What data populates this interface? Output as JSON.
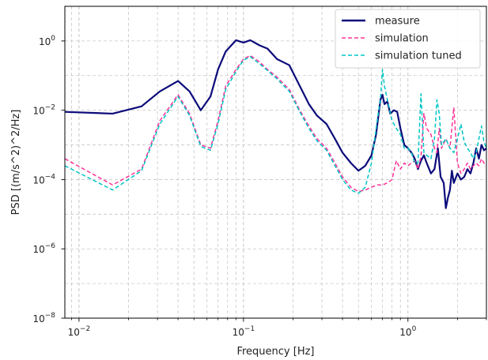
{
  "chart_data": {
    "type": "line",
    "xlabel": "Frequency [Hz]",
    "ylabel": "PSD [(m/s^2)^2/Hz]",
    "x_scale": "log",
    "y_scale": "log",
    "xlim": [
      0.0082,
      3.0
    ],
    "ylim": [
      1e-08,
      10
    ],
    "grid": true,
    "grid_style": "dashed",
    "legend_position": "top-right",
    "x_ticks": [
      {
        "value": 0.01,
        "base": "10",
        "exp": "−2"
      },
      {
        "value": 0.1,
        "base": "10",
        "exp": "−1"
      },
      {
        "value": 1,
        "base": "10",
        "exp": "0"
      }
    ],
    "y_ticks": [
      {
        "value": 1e-08,
        "base": "10",
        "exp": "−8"
      },
      {
        "value": 1e-06,
        "base": "10",
        "exp": "−6"
      },
      {
        "value": 0.0001,
        "base": "10",
        "exp": "−4"
      },
      {
        "value": 0.01,
        "base": "10",
        "exp": "−2"
      },
      {
        "value": 1,
        "base": "10",
        "exp": "0"
      }
    ],
    "series": [
      {
        "name": "measure",
        "color": "#0b0b7a",
        "style": "solid",
        "x": [
          0.0082,
          0.016,
          0.024,
          0.031,
          0.04,
          0.047,
          0.055,
          0.063,
          0.07,
          0.078,
          0.09,
          0.1,
          0.11,
          0.125,
          0.14,
          0.16,
          0.19,
          0.22,
          0.25,
          0.28,
          0.32,
          0.36,
          0.4,
          0.45,
          0.5,
          0.55,
          0.6,
          0.64,
          0.68,
          0.7,
          0.72,
          0.75,
          0.78,
          0.82,
          0.86,
          0.9,
          0.95,
          1.0,
          1.05,
          1.1,
          1.15,
          1.2,
          1.25,
          1.3,
          1.38,
          1.45,
          1.52,
          1.58,
          1.65,
          1.7,
          1.75,
          1.8,
          1.85,
          1.9,
          2.0,
          2.1,
          2.2,
          2.3,
          2.4,
          2.5,
          2.6,
          2.7,
          2.8,
          2.9,
          3.0
        ],
        "y": [
          0.009,
          0.008,
          0.013,
          0.035,
          0.07,
          0.035,
          0.01,
          0.025,
          0.15,
          0.5,
          1.05,
          0.9,
          1.05,
          0.75,
          0.6,
          0.3,
          0.2,
          0.05,
          0.015,
          0.007,
          0.004,
          0.0015,
          0.0006,
          0.0003,
          0.00018,
          0.00025,
          0.0005,
          0.002,
          0.02,
          0.028,
          0.015,
          0.018,
          0.008,
          0.01,
          0.009,
          0.003,
          0.001,
          0.0008,
          0.0006,
          0.0004,
          0.0002,
          0.00035,
          0.0005,
          0.0003,
          0.00015,
          0.0002,
          0.0008,
          0.00012,
          8e-05,
          1.5e-05,
          3e-05,
          5e-05,
          0.00018,
          8e-05,
          0.00015,
          0.0001,
          0.00012,
          0.0002,
          0.00015,
          0.0003,
          0.0008,
          0.0004,
          0.001,
          0.0007,
          0.0008
        ]
      },
      {
        "name": "simulation",
        "color": "#ff3399",
        "style": "dashed",
        "x": [
          0.0082,
          0.016,
          0.024,
          0.031,
          0.04,
          0.047,
          0.055,
          0.063,
          0.07,
          0.078,
          0.09,
          0.1,
          0.11,
          0.125,
          0.14,
          0.16,
          0.19,
          0.22,
          0.25,
          0.28,
          0.32,
          0.36,
          0.4,
          0.45,
          0.5,
          0.55,
          0.6,
          0.65,
          0.7,
          0.75,
          0.8,
          0.85,
          0.9,
          0.95,
          1.0,
          1.05,
          1.1,
          1.15,
          1.2,
          1.25,
          1.3,
          1.38,
          1.45,
          1.5,
          1.55,
          1.6,
          1.7,
          1.8,
          1.9,
          2.0,
          2.1,
          2.2,
          2.3,
          2.4,
          2.5,
          2.6,
          2.7,
          2.8,
          2.9,
          3.0
        ],
        "y": [
          0.0004,
          7e-05,
          0.0002,
          0.005,
          0.028,
          0.008,
          0.001,
          0.0008,
          0.005,
          0.05,
          0.15,
          0.3,
          0.38,
          0.25,
          0.15,
          0.09,
          0.04,
          0.01,
          0.0035,
          0.0015,
          0.0008,
          0.0003,
          0.00012,
          6e-05,
          4.5e-05,
          5e-05,
          6e-05,
          7e-05,
          7e-05,
          8e-05,
          0.0001,
          0.00035,
          0.0002,
          0.0003,
          0.00025,
          0.0003,
          0.00035,
          0.0002,
          0.00045,
          0.008,
          0.003,
          0.002,
          0.0008,
          0.0006,
          0.003,
          0.0008,
          0.0015,
          0.0008,
          0.012,
          0.0003,
          0.00015,
          0.0002,
          0.0003,
          0.0002,
          0.00025,
          0.0003,
          0.00025,
          0.0004,
          0.0003,
          0.00025
        ]
      },
      {
        "name": "simulation tuned",
        "color": "#00c5c5",
        "style": "dashed",
        "x": [
          0.0082,
          0.016,
          0.024,
          0.031,
          0.04,
          0.047,
          0.055,
          0.063,
          0.07,
          0.078,
          0.09,
          0.1,
          0.11,
          0.125,
          0.14,
          0.16,
          0.19,
          0.22,
          0.25,
          0.28,
          0.32,
          0.36,
          0.4,
          0.45,
          0.5,
          0.55,
          0.6,
          0.65,
          0.68,
          0.7,
          0.72,
          0.75,
          0.8,
          0.85,
          0.9,
          0.95,
          1.0,
          1.05,
          1.1,
          1.15,
          1.2,
          1.25,
          1.3,
          1.38,
          1.45,
          1.5,
          1.55,
          1.6,
          1.7,
          1.8,
          1.9,
          2.0,
          2.1,
          2.2,
          2.3,
          2.4,
          2.5,
          2.6,
          2.7,
          2.8,
          2.9,
          3.0
        ],
        "y": [
          0.00025,
          5e-05,
          0.00018,
          0.004,
          0.025,
          0.007,
          0.0009,
          0.0007,
          0.004,
          0.04,
          0.13,
          0.28,
          0.35,
          0.22,
          0.14,
          0.08,
          0.035,
          0.009,
          0.003,
          0.0013,
          0.0007,
          0.00025,
          0.0001,
          5e-05,
          4e-05,
          6e-05,
          0.0003,
          0.005,
          0.02,
          0.15,
          0.05,
          0.02,
          0.005,
          0.003,
          0.002,
          0.0008,
          0.0008,
          0.0006,
          0.0003,
          0.0003,
          0.03,
          0.0006,
          0.0005,
          0.0004,
          0.0015,
          0.02,
          0.008,
          0.001,
          0.0015,
          0.0008,
          0.0006,
          0.0015,
          0.004,
          0.0012,
          0.0008,
          0.0006,
          0.0004,
          0.0006,
          0.0015,
          0.0035,
          0.0012,
          0.0008
        ]
      }
    ]
  }
}
